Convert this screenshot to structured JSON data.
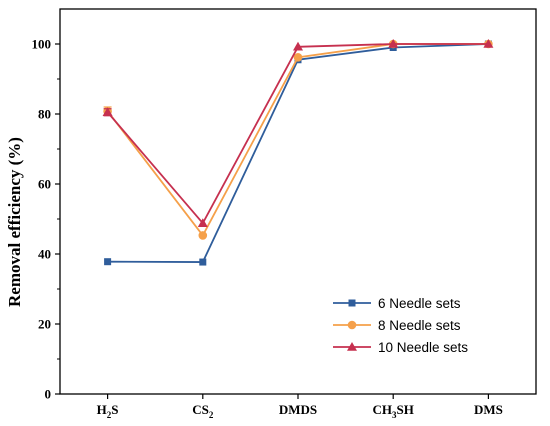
{
  "chart_data": {
    "type": "line",
    "ylabel": "Removal efficiency (%)",
    "xlabel": "",
    "categories": [
      {
        "label": "H",
        "sub": "2",
        "rest": "S"
      },
      {
        "label": "CS",
        "sub": "2",
        "rest": ""
      },
      {
        "label": "DMDS",
        "sub": "",
        "rest": ""
      },
      {
        "label": "CH",
        "sub": "3",
        "rest": "SH"
      },
      {
        "label": "DMS",
        "sub": "",
        "rest": ""
      }
    ],
    "ylim": [
      0,
      110
    ],
    "yticks": [
      0,
      20,
      40,
      60,
      80,
      100
    ],
    "grid": false,
    "legend_position": "bottom-right",
    "series": [
      {
        "name": "6 Needle sets",
        "color": "#2f5d9b",
        "marker": "square",
        "values": [
          37.8,
          37.7,
          95.5,
          99.0,
          100.0
        ]
      },
      {
        "name": "8 Needle sets",
        "color": "#f5a04a",
        "marker": "circle",
        "values": [
          80.8,
          45.3,
          96.2,
          100.0,
          100.0
        ]
      },
      {
        "name": "10 Needle sets",
        "color": "#c6304f",
        "marker": "triangle",
        "values": [
          80.5,
          48.8,
          99.2,
          100.0,
          100.0
        ]
      }
    ],
    "error_bars": [
      {
        "series": 1,
        "index": 0,
        "err": 1.2
      },
      {
        "series": 2,
        "index": 0,
        "err": 1.0
      }
    ]
  }
}
